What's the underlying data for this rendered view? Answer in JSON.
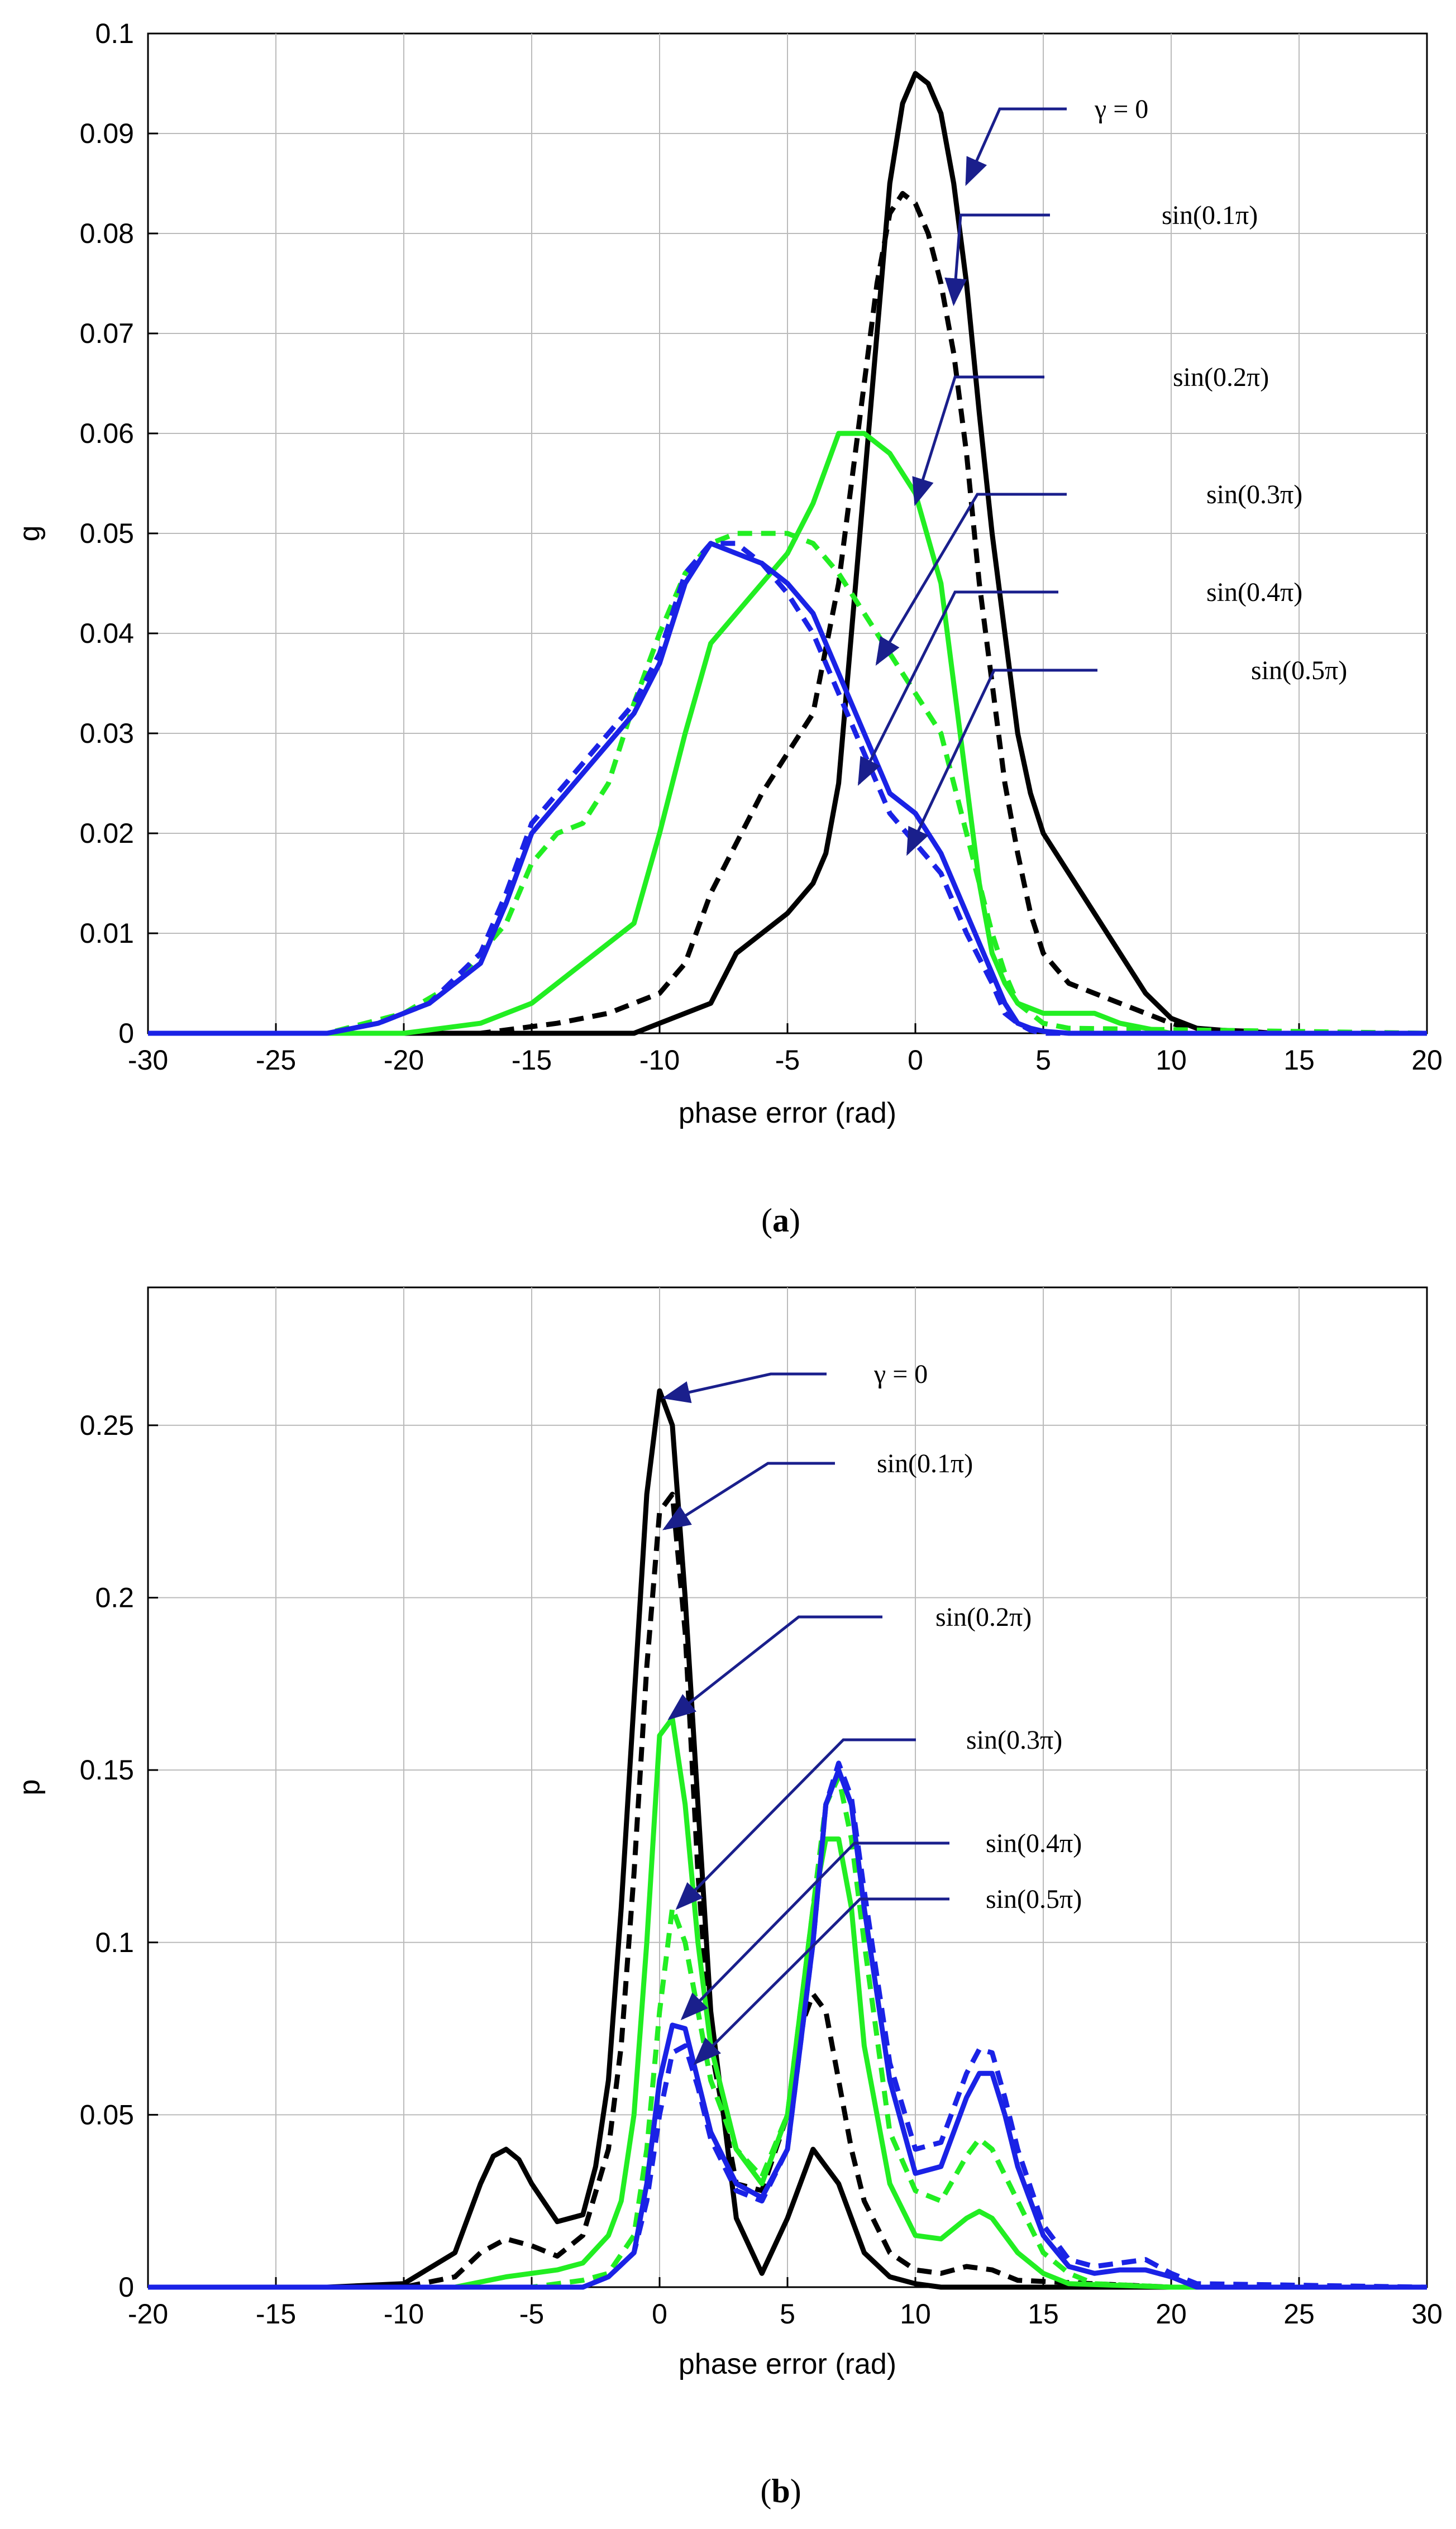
{
  "colors": {
    "black": "#000000",
    "green": "#22ee22",
    "blue": "#1a22e6",
    "arrow": "#1a1f8c",
    "axes": "#000000",
    "grid": "#bbbbbb"
  },
  "chart_data": [
    {
      "id": "a",
      "type": "line",
      "caption_letter": "a",
      "xlabel": "phase error (rad)",
      "ylabel": "g",
      "xlim": [
        -30,
        20
      ],
      "ylim": [
        0,
        0.1
      ],
      "xticks": [
        -30,
        -25,
        -20,
        -15,
        -10,
        -5,
        0,
        5,
        10,
        15,
        20
      ],
      "yticks": [
        0,
        0.01,
        0.02,
        0.03,
        0.04,
        0.05,
        0.06,
        0.07,
        0.08,
        0.09,
        0.1
      ],
      "xtick_labels": [
        "-30",
        "-25",
        "-20",
        "-15",
        "-10",
        "-5",
        "0",
        "5",
        "10",
        "15",
        "20"
      ],
      "ytick_labels": [
        "0",
        "0.01",
        "0.02",
        "0.03",
        "0.04",
        "0.05",
        "0.06",
        "0.07",
        "0.08",
        "0.09",
        "0.1"
      ],
      "series": [
        {
          "name": "γ = 0",
          "color": "black",
          "dash": false,
          "x": [
            -30,
            -11,
            -10,
            -8,
            -7,
            -5,
            -4,
            -3.5,
            -3,
            -2.5,
            -2,
            -1.5,
            -1,
            -0.5,
            0,
            0.5,
            1,
            1.5,
            2,
            2.5,
            3,
            3.5,
            4,
            4.5,
            5,
            6,
            7,
            8,
            9,
            10,
            11,
            12,
            13,
            14,
            20
          ],
          "y": [
            0,
            0,
            0.001,
            0.003,
            0.008,
            0.012,
            0.015,
            0.018,
            0.025,
            0.04,
            0.055,
            0.07,
            0.085,
            0.093,
            0.096,
            0.095,
            0.092,
            0.085,
            0.075,
            0.062,
            0.05,
            0.04,
            0.03,
            0.024,
            0.02,
            0.016,
            0.012,
            0.008,
            0.004,
            0.0015,
            0.0005,
            0.0003,
            0.0002,
            0,
            0
          ]
        },
        {
          "name": "sin(0.1π)",
          "color": "black",
          "dash": true,
          "x": [
            -30,
            -17,
            -14,
            -12,
            -10,
            -9,
            -8,
            -6,
            -4,
            -3,
            -2.5,
            -2,
            -1.5,
            -1,
            -0.5,
            0,
            0.5,
            1,
            1.5,
            2,
            2.5,
            3,
            3.5,
            4,
            4.5,
            5,
            6,
            7,
            8,
            9,
            10,
            11,
            12,
            20
          ],
          "y": [
            0,
            0,
            0.001,
            0.002,
            0.004,
            0.007,
            0.014,
            0.024,
            0.032,
            0.045,
            0.055,
            0.065,
            0.075,
            0.082,
            0.084,
            0.083,
            0.08,
            0.075,
            0.068,
            0.058,
            0.045,
            0.035,
            0.025,
            0.018,
            0.012,
            0.008,
            0.005,
            0.004,
            0.003,
            0.002,
            0.001,
            0.0003,
            0,
            0
          ]
        },
        {
          "name": "sin(0.2π)",
          "color": "green",
          "dash": false,
          "x": [
            -30,
            -20,
            -17,
            -15,
            -13,
            -11,
            -10,
            -9,
            -8,
            -7,
            -6,
            -5,
            -4,
            -3,
            -2,
            -1,
            0,
            1,
            1.5,
            2,
            2.5,
            3,
            3.5,
            4,
            5,
            6,
            7,
            8,
            9,
            10,
            20
          ],
          "y": [
            0,
            0,
            0.001,
            0.003,
            0.007,
            0.011,
            0.02,
            0.03,
            0.039,
            0.042,
            0.045,
            0.048,
            0.053,
            0.06,
            0.06,
            0.058,
            0.054,
            0.045,
            0.035,
            0.025,
            0.015,
            0.008,
            0.005,
            0.003,
            0.002,
            0.002,
            0.002,
            0.001,
            0.0005,
            0,
            0
          ]
        },
        {
          "name": "sin(0.3π)",
          "color": "green",
          "dash": true,
          "x": [
            -30,
            -23,
            -20,
            -18,
            -16,
            -15,
            -14,
            -13,
            -12,
            -11,
            -10,
            -9,
            -8,
            -7,
            -6,
            -5,
            -4,
            -3,
            -2,
            -1,
            0,
            1,
            1.5,
            2,
            2.5,
            3,
            3.5,
            4,
            5,
            6,
            20
          ],
          "y": [
            0,
            0,
            0.002,
            0.005,
            0.011,
            0.017,
            0.02,
            0.021,
            0.025,
            0.033,
            0.04,
            0.046,
            0.049,
            0.05,
            0.05,
            0.05,
            0.049,
            0.046,
            0.042,
            0.038,
            0.034,
            0.03,
            0.025,
            0.02,
            0.015,
            0.01,
            0.006,
            0.003,
            0.001,
            0.0005,
            0
          ]
        },
        {
          "name": "sin(0.4π)",
          "color": "blue",
          "dash": false,
          "x": [
            -30,
            -23,
            -21,
            -19,
            -17,
            -16,
            -15,
            -14,
            -13,
            -12,
            -11,
            -10,
            -9,
            -8,
            -7,
            -6,
            -5,
            -4,
            -3,
            -2,
            -1,
            0,
            1,
            2,
            3,
            3.5,
            4,
            4.5,
            5,
            6,
            20
          ],
          "y": [
            0,
            0,
            0.001,
            0.003,
            0.007,
            0.013,
            0.02,
            0.023,
            0.026,
            0.029,
            0.032,
            0.037,
            0.045,
            0.049,
            0.048,
            0.047,
            0.045,
            0.042,
            0.036,
            0.03,
            0.024,
            0.022,
            0.018,
            0.012,
            0.006,
            0.003,
            0.001,
            0.0005,
            0.0002,
            0,
            0
          ]
        },
        {
          "name": "sin(0.5π)",
          "color": "blue",
          "dash": true,
          "x": [
            -30,
            -23,
            -21,
            -19,
            -17,
            -16,
            -15,
            -14,
            -13,
            -12,
            -11,
            -10,
            -9,
            -8,
            -7,
            -6,
            -5,
            -4,
            -3,
            -2,
            -1,
            0,
            1,
            2,
            3,
            3.5,
            4,
            4.5,
            5,
            20
          ],
          "y": [
            0,
            0,
            0.001,
            0.003,
            0.008,
            0.014,
            0.021,
            0.024,
            0.027,
            0.03,
            0.033,
            0.038,
            0.046,
            0.049,
            0.049,
            0.047,
            0.044,
            0.04,
            0.034,
            0.028,
            0.022,
            0.019,
            0.016,
            0.01,
            0.005,
            0.002,
            0.001,
            0.0003,
            0,
            0
          ]
        }
      ],
      "annotations": [
        {
          "label": "γ = 0",
          "to": [
            2,
            0.085
          ]
        },
        {
          "label": "sin(0.1π)",
          "to": [
            1.5,
            0.073
          ]
        },
        {
          "label": "sin(0.2π)",
          "to": [
            0,
            0.053
          ]
        },
        {
          "label": "sin(0.3π)",
          "to": [
            -1.5,
            0.037
          ]
        },
        {
          "label": "sin(0.4π)",
          "to": [
            -2.2,
            0.025
          ]
        },
        {
          "label": "sin(0.5π)",
          "to": [
            -0.3,
            0.018
          ]
        }
      ]
    },
    {
      "id": "b",
      "type": "line",
      "caption_letter": "b",
      "xlabel": "phase error (rad)",
      "ylabel": "p",
      "xlim": [
        -20,
        30
      ],
      "ylim": [
        0,
        0.29
      ],
      "xticks": [
        -20,
        -15,
        -10,
        -5,
        0,
        5,
        10,
        15,
        20,
        25,
        30
      ],
      "yticks": [
        0,
        0.05,
        0.1,
        0.15,
        0.2,
        0.25
      ],
      "xtick_labels": [
        "-20",
        "-15",
        "-10",
        "-5",
        "0",
        "5",
        "10",
        "15",
        "20",
        "25",
        "30"
      ],
      "ytick_labels": [
        "0",
        "0.05",
        "0.1",
        "0.15",
        "0.2",
        "0.25"
      ],
      "series": [
        {
          "name": "γ = 0",
          "color": "black",
          "dash": false,
          "x": [
            -20,
            -13,
            -10,
            -8,
            -7,
            -6.5,
            -6,
            -5.5,
            -5,
            -4,
            -3,
            -2.5,
            -2,
            -1.5,
            -1,
            -0.5,
            0,
            0.5,
            1,
            1.5,
            2,
            3,
            4,
            5,
            6,
            7,
            8,
            9,
            10,
            11,
            12,
            20,
            30
          ],
          "y": [
            0,
            0,
            0.001,
            0.01,
            0.03,
            0.038,
            0.04,
            0.037,
            0.03,
            0.019,
            0.021,
            0.035,
            0.06,
            0.11,
            0.17,
            0.23,
            0.26,
            0.25,
            0.2,
            0.14,
            0.08,
            0.02,
            0.004,
            0.02,
            0.04,
            0.03,
            0.01,
            0.003,
            0.001,
            0,
            0,
            0,
            0
          ]
        },
        {
          "name": "sin(0.1π)",
          "color": "black",
          "dash": true,
          "x": [
            -20,
            -10,
            -8,
            -7,
            -6,
            -5,
            -4,
            -3,
            -2,
            -1.5,
            -1,
            -0.5,
            0,
            0.5,
            1,
            1.5,
            2,
            3,
            4,
            5,
            5.5,
            6,
            6.5,
            7,
            7.5,
            8,
            9,
            10,
            11,
            12,
            13,
            14,
            20,
            30
          ],
          "y": [
            0,
            0,
            0.003,
            0.01,
            0.014,
            0.012,
            0.009,
            0.015,
            0.04,
            0.07,
            0.12,
            0.18,
            0.225,
            0.23,
            0.19,
            0.12,
            0.07,
            0.03,
            0.028,
            0.05,
            0.075,
            0.085,
            0.08,
            0.06,
            0.04,
            0.025,
            0.01,
            0.005,
            0.004,
            0.006,
            0.005,
            0.002,
            0,
            0
          ]
        },
        {
          "name": "sin(0.2π)",
          "color": "green",
          "dash": false,
          "x": [
            -20,
            -8,
            -6,
            -4,
            -3,
            -2,
            -1.5,
            -1,
            -0.5,
            0,
            0.5,
            1,
            1.5,
            2,
            3,
            4,
            5,
            6,
            6.5,
            7,
            7.5,
            8,
            9,
            10,
            11,
            12,
            12.5,
            13,
            14,
            15,
            16,
            20,
            30
          ],
          "y": [
            0,
            0,
            0.003,
            0.005,
            0.007,
            0.015,
            0.025,
            0.05,
            0.1,
            0.16,
            0.165,
            0.14,
            0.1,
            0.07,
            0.04,
            0.03,
            0.05,
            0.11,
            0.13,
            0.13,
            0.11,
            0.07,
            0.03,
            0.015,
            0.014,
            0.02,
            0.022,
            0.02,
            0.01,
            0.004,
            0.001,
            0,
            0
          ]
        },
        {
          "name": "sin(0.3π)",
          "color": "green",
          "dash": true,
          "x": [
            -20,
            -5,
            -3,
            -2,
            -1,
            -0.5,
            0,
            0.5,
            1,
            1.5,
            2,
            3,
            4,
            5,
            6,
            6.5,
            7,
            7.5,
            8,
            9,
            10,
            11,
            12,
            12.5,
            13,
            14,
            15,
            16,
            17,
            20,
            30
          ],
          "y": [
            0,
            0,
            0.002,
            0.004,
            0.015,
            0.04,
            0.08,
            0.11,
            0.1,
            0.08,
            0.06,
            0.04,
            0.032,
            0.05,
            0.11,
            0.14,
            0.148,
            0.13,
            0.1,
            0.045,
            0.028,
            0.025,
            0.038,
            0.043,
            0.04,
            0.025,
            0.01,
            0.004,
            0.001,
            0,
            0
          ]
        },
        {
          "name": "sin(0.4π)",
          "color": "blue",
          "dash": false,
          "x": [
            -20,
            -3,
            -2,
            -1,
            -0.5,
            0,
            0.5,
            1,
            1.5,
            2,
            3,
            4,
            5,
            6,
            6.5,
            7,
            7.5,
            8,
            9,
            10,
            11,
            12,
            12.5,
            13,
            13.5,
            14,
            15,
            16,
            17,
            18,
            19,
            20,
            21,
            30
          ],
          "y": [
            0,
            0,
            0.003,
            0.01,
            0.03,
            0.06,
            0.076,
            0.075,
            0.06,
            0.045,
            0.03,
            0.026,
            0.04,
            0.1,
            0.14,
            0.15,
            0.14,
            0.11,
            0.06,
            0.033,
            0.035,
            0.055,
            0.062,
            0.062,
            0.05,
            0.035,
            0.015,
            0.006,
            0.004,
            0.005,
            0.005,
            0.003,
            0,
            0
          ]
        },
        {
          "name": "sin(0.5π)",
          "color": "blue",
          "dash": true,
          "x": [
            -20,
            -3,
            -2,
            -1,
            -0.5,
            0,
            0.5,
            1,
            1.5,
            2,
            3,
            4,
            5,
            6,
            6.5,
            7,
            7.5,
            8,
            9,
            10,
            11,
            12,
            12.5,
            13,
            13.5,
            14,
            15,
            16,
            17,
            18,
            19,
            20,
            21,
            30
          ],
          "y": [
            0,
            0,
            0.003,
            0.01,
            0.025,
            0.05,
            0.068,
            0.07,
            0.058,
            0.043,
            0.028,
            0.025,
            0.04,
            0.1,
            0.14,
            0.152,
            0.142,
            0.115,
            0.065,
            0.04,
            0.042,
            0.062,
            0.069,
            0.068,
            0.055,
            0.04,
            0.018,
            0.008,
            0.006,
            0.007,
            0.008,
            0.004,
            0.001,
            0
          ]
        }
      ],
      "annotations": [
        {
          "label": "γ = 0",
          "to": [
            0.2,
            0.258
          ]
        },
        {
          "label": "sin(0.1π)",
          "to": [
            0.2,
            0.22
          ]
        },
        {
          "label": "sin(0.2π)",
          "to": [
            0.4,
            0.165
          ]
        },
        {
          "label": "sin(0.3π)",
          "to": [
            0.7,
            0.11
          ]
        },
        {
          "label": "sin(0.4π)",
          "to": [
            0.9,
            0.078
          ]
        },
        {
          "label": "sin(0.5π)",
          "to": [
            1.4,
            0.065
          ]
        }
      ]
    }
  ]
}
